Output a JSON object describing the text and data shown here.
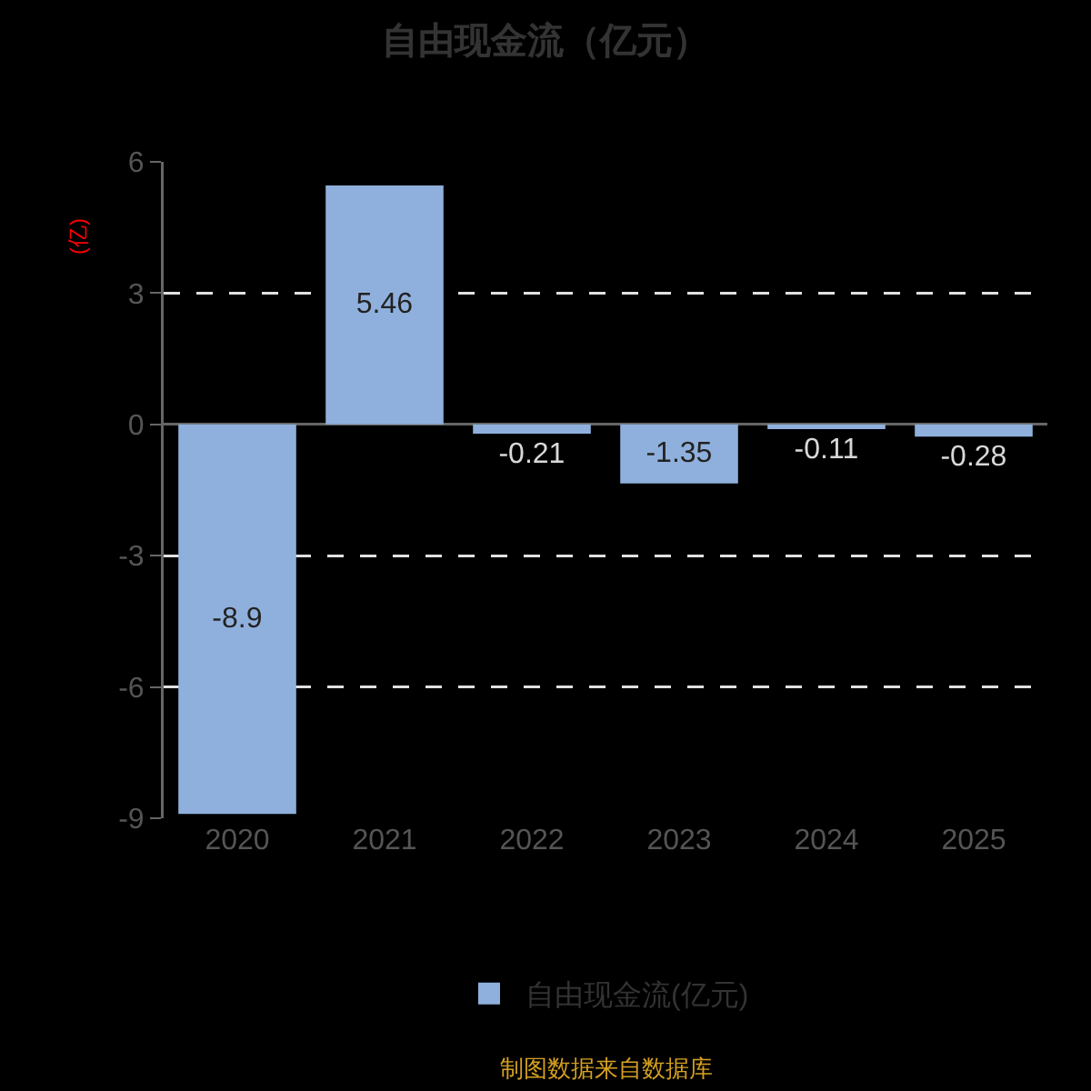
{
  "chart_data": {
    "type": "bar",
    "title": "自由现金流（亿元）",
    "ylabel": "(亿)",
    "categories": [
      "2020",
      "2021",
      "2022",
      "2023",
      "2024",
      "2025"
    ],
    "series": [
      {
        "name": "自由现金流(亿元)",
        "color": "#8fb0dc",
        "values": [
          -8.9,
          5.46,
          -0.21,
          -1.35,
          -0.11,
          -0.28
        ]
      }
    ],
    "ylim": [
      -9,
      6
    ],
    "yticks": [
      -9,
      -6,
      -3,
      0,
      3,
      6
    ],
    "grid": "y",
    "legend": "bottom",
    "data_labels": true,
    "annotations": [
      "制图数据来自数据库"
    ]
  }
}
